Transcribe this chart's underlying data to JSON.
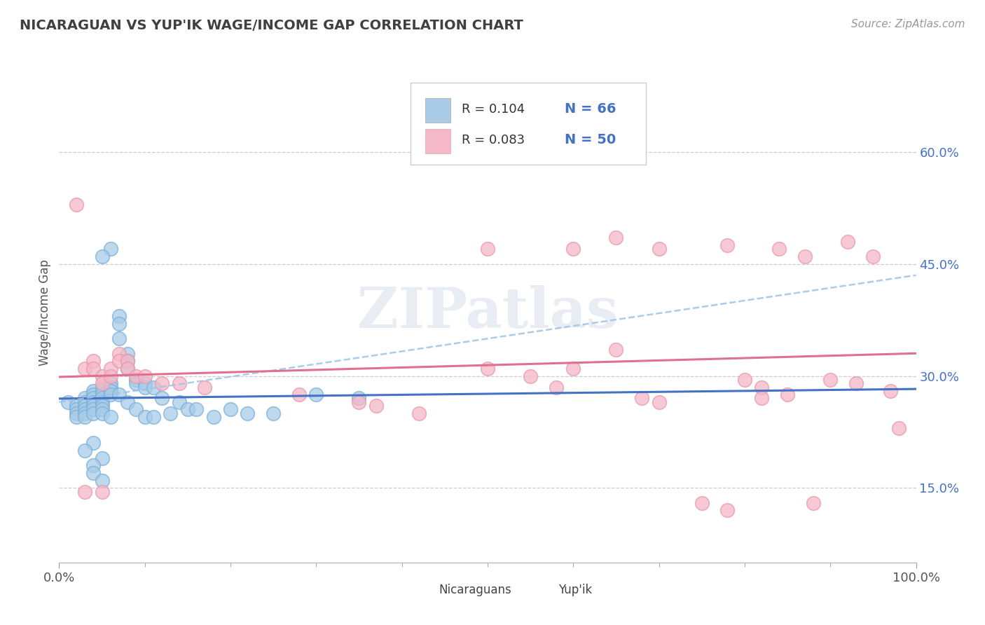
{
  "title": "NICARAGUAN VS YUP'IK WAGE/INCOME GAP CORRELATION CHART",
  "source_text": "Source: ZipAtlas.com",
  "ylabel": "Wage/Income Gap",
  "xlim": [
    0.0,
    1.0
  ],
  "ylim": [
    0.05,
    0.72
  ],
  "x_ticks": [
    0.0,
    1.0
  ],
  "x_tick_labels": [
    "0.0%",
    "100.0%"
  ],
  "y_ticks": [
    0.15,
    0.3,
    0.45,
    0.6
  ],
  "y_tick_labels": [
    "15.0%",
    "30.0%",
    "45.0%",
    "60.0%"
  ],
  "watermark": "ZIPatlas",
  "legend_R1": "R = 0.104",
  "legend_N1": "N = 66",
  "legend_R2": "R = 0.083",
  "legend_N2": "N = 50",
  "legend_label1": "Nicaraguans",
  "legend_label2": "Yup'ik",
  "blue_color": "#a8cce8",
  "pink_color": "#f5b8c8",
  "trend_blue_solid": "#4472c4",
  "trend_blue_dashed": "#9dc3e6",
  "trend_pink_solid": "#e07090",
  "tick_color": "#4472c4",
  "title_color": "#404040",
  "blue_scatter_x": [
    0.01,
    0.02,
    0.02,
    0.02,
    0.02,
    0.03,
    0.03,
    0.03,
    0.03,
    0.03,
    0.03,
    0.04,
    0.04,
    0.04,
    0.04,
    0.04,
    0.04,
    0.04,
    0.05,
    0.05,
    0.05,
    0.05,
    0.05,
    0.05,
    0.05,
    0.05,
    0.06,
    0.06,
    0.06,
    0.06,
    0.06,
    0.07,
    0.07,
    0.07,
    0.07,
    0.08,
    0.08,
    0.08,
    0.08,
    0.09,
    0.09,
    0.09,
    0.1,
    0.1,
    0.1,
    0.11,
    0.11,
    0.12,
    0.13,
    0.14,
    0.15,
    0.16,
    0.18,
    0.2,
    0.22,
    0.25,
    0.06,
    0.05,
    0.04,
    0.03,
    0.05,
    0.04,
    0.04,
    0.3,
    0.05,
    0.35
  ],
  "blue_scatter_y": [
    0.265,
    0.26,
    0.255,
    0.25,
    0.245,
    0.27,
    0.265,
    0.26,
    0.255,
    0.25,
    0.245,
    0.28,
    0.275,
    0.27,
    0.265,
    0.26,
    0.255,
    0.25,
    0.285,
    0.28,
    0.275,
    0.27,
    0.265,
    0.26,
    0.255,
    0.25,
    0.29,
    0.285,
    0.28,
    0.275,
    0.245,
    0.38,
    0.37,
    0.35,
    0.275,
    0.33,
    0.32,
    0.31,
    0.265,
    0.295,
    0.29,
    0.255,
    0.29,
    0.285,
    0.245,
    0.285,
    0.245,
    0.27,
    0.25,
    0.265,
    0.255,
    0.255,
    0.245,
    0.255,
    0.25,
    0.25,
    0.47,
    0.46,
    0.21,
    0.2,
    0.19,
    0.18,
    0.17,
    0.275,
    0.16,
    0.27
  ],
  "pink_scatter_x": [
    0.02,
    0.03,
    0.04,
    0.04,
    0.05,
    0.05,
    0.06,
    0.06,
    0.07,
    0.07,
    0.08,
    0.08,
    0.09,
    0.1,
    0.12,
    0.14,
    0.17,
    0.28,
    0.35,
    0.37,
    0.42,
    0.5,
    0.55,
    0.58,
    0.6,
    0.65,
    0.68,
    0.7,
    0.75,
    0.78,
    0.8,
    0.82,
    0.85,
    0.88,
    0.9,
    0.92,
    0.93,
    0.95,
    0.97,
    0.98,
    0.84,
    0.87,
    0.5,
    0.6,
    0.65,
    0.7,
    0.78,
    0.82,
    0.03,
    0.05
  ],
  "pink_scatter_y": [
    0.53,
    0.31,
    0.32,
    0.31,
    0.3,
    0.29,
    0.31,
    0.3,
    0.33,
    0.32,
    0.32,
    0.31,
    0.3,
    0.3,
    0.29,
    0.29,
    0.285,
    0.275,
    0.265,
    0.26,
    0.25,
    0.31,
    0.3,
    0.285,
    0.31,
    0.335,
    0.27,
    0.265,
    0.13,
    0.12,
    0.295,
    0.285,
    0.275,
    0.13,
    0.295,
    0.48,
    0.29,
    0.46,
    0.28,
    0.23,
    0.47,
    0.46,
    0.47,
    0.47,
    0.485,
    0.47,
    0.475,
    0.27,
    0.145,
    0.145
  ]
}
